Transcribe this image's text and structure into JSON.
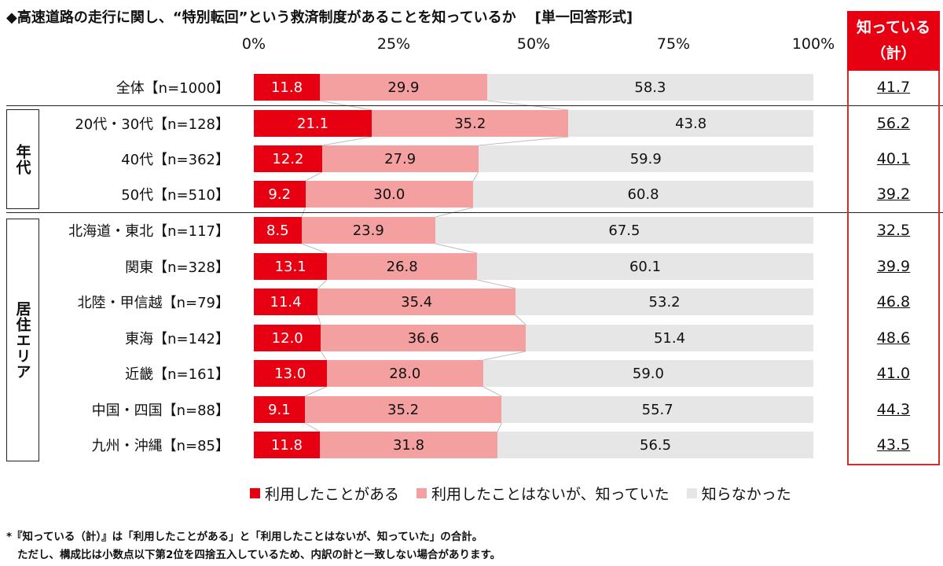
{
  "title": "◆高速道路の走行に関し、“特別転回”という救済制度があることを知っているか",
  "answer_format": "[単一回答形式]",
  "known_header": {
    "line1": "知っている",
    "line2": "（計）"
  },
  "group_labels": {
    "age": "年代",
    "area": "居住エリア"
  },
  "legend": [
    "利用したことがある",
    "利用したことはないが、知っていた",
    "知らなかった"
  ],
  "footnote": [
    "*『知っている（計）』は「利用したことがある」と「利用したことはないが、知っていた」の合計。",
    "ただし、構成比は小数点以下第2位を四捨五入しているため、内訳の計と一致しない場合があります。"
  ],
  "colors": {
    "used": "#e60012",
    "known_not_used": "#f4a0a0",
    "not_known": "#e6e6e6",
    "accent": "#e60012"
  },
  "chart_data": {
    "type": "bar",
    "orientation": "horizontal-stacked-100",
    "xlim": [
      0,
      100
    ],
    "ticks": [
      "0%",
      "25%",
      "50%",
      "75%",
      "100%"
    ],
    "tick_values": [
      0,
      25,
      50,
      75,
      100
    ],
    "series": [
      {
        "name": "利用したことがある"
      },
      {
        "name": "利用したことはないが、知っていた"
      },
      {
        "name": "知らなかった"
      }
    ],
    "rows": [
      {
        "label": "全体【n=1000】",
        "values": [
          "11.8",
          "29.9",
          "58.3"
        ],
        "known": "41.7"
      },
      {
        "label": "20代・30代【n=128】",
        "values": [
          "21.1",
          "35.2",
          "43.8"
        ],
        "known": "56.2"
      },
      {
        "label": "40代【n=362】",
        "values": [
          "12.2",
          "27.9",
          "59.9"
        ],
        "known": "40.1"
      },
      {
        "label": "50代【n=510】",
        "values": [
          "9.2",
          "30.0",
          "60.8"
        ],
        "known": "39.2"
      },
      {
        "label": "北海道・東北【n=117】",
        "values": [
          "8.5",
          "23.9",
          "67.5"
        ],
        "known": "32.5"
      },
      {
        "label": "関東【n=328】",
        "values": [
          "13.1",
          "26.8",
          "60.1"
        ],
        "known": "39.9"
      },
      {
        "label": "北陸・甲信越【n=79】",
        "values": [
          "11.4",
          "35.4",
          "53.2"
        ],
        "known": "46.8"
      },
      {
        "label": "東海【n=142】",
        "values": [
          "12.0",
          "36.6",
          "51.4"
        ],
        "known": "48.6"
      },
      {
        "label": "近畿【n=161】",
        "values": [
          "13.0",
          "28.0",
          "59.0"
        ],
        "known": "41.0"
      },
      {
        "label": "中国・四国【n=88】",
        "values": [
          "9.1",
          "35.2",
          "55.7"
        ],
        "known": "44.3"
      },
      {
        "label": "九州・沖縄【n=85】",
        "values": [
          "11.8",
          "31.8",
          "56.5"
        ],
        "known": "43.5"
      }
    ]
  }
}
